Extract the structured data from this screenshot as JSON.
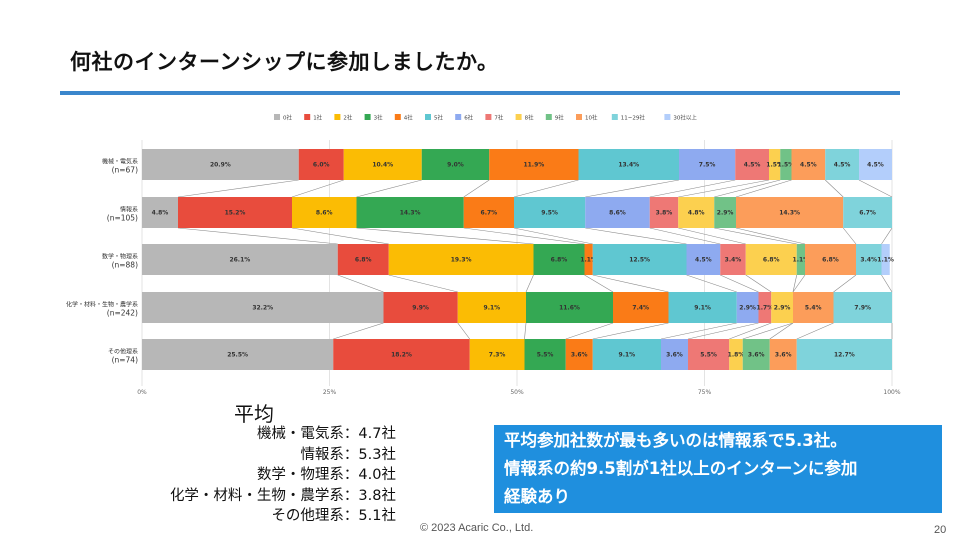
{
  "title": "何社のインターンシップに参加しましたか。",
  "chart_data": {
    "type": "bar",
    "orientation": "horizontal",
    "stacked": "percent",
    "series_names": [
      "0社",
      "1社",
      "2社",
      "3社",
      "4社",
      "5社",
      "6社",
      "7社",
      "8社",
      "9社",
      "10社",
      "11~29社",
      "30社以上"
    ],
    "colors": [
      "#b7b7b7",
      "#e84c3d",
      "#fbbc04",
      "#34a853",
      "#fa7b17",
      "#5fc7d1",
      "#8eaaf0",
      "#ee7875",
      "#fcd04f",
      "#71c287",
      "#fc9d5a",
      "#7fd3db",
      "#b3cefb"
    ],
    "categories": [
      {
        "name": "機械・電気系",
        "n": "(n=67)",
        "values": [
          20.9,
          6.0,
          10.4,
          9.0,
          11.9,
          13.4,
          7.5,
          4.5,
          1.5,
          1.5,
          4.5,
          4.5,
          4.5
        ]
      },
      {
        "name": "情報系",
        "n": "(n=105)",
        "values": [
          4.8,
          15.2,
          8.6,
          14.3,
          6.7,
          9.5,
          8.6,
          3.8,
          4.8,
          2.9,
          14.3,
          6.7,
          0
        ]
      },
      {
        "name": "数学・物理系",
        "n": "(n=88)",
        "values": [
          26.1,
          6.8,
          19.3,
          6.8,
          1.1,
          12.5,
          4.5,
          3.4,
          6.8,
          1.1,
          6.8,
          3.4,
          1.1
        ]
      },
      {
        "name": "化学・材料・生物・農学系",
        "n": "(n=242)",
        "values": [
          32.2,
          9.9,
          9.1,
          11.6,
          7.4,
          9.1,
          2.9,
          1.7,
          2.9,
          0,
          5.4,
          7.9,
          0
        ]
      },
      {
        "name": "その他理系",
        "n": "(n=74)",
        "values": [
          25.5,
          18.2,
          7.3,
          5.5,
          3.6,
          9.1,
          3.6,
          5.5,
          1.8,
          3.6,
          3.6,
          12.7,
          0
        ]
      }
    ],
    "label_suffix": "%",
    "x_ticks": [
      "0%",
      "25%",
      "50%",
      "75%",
      "100%"
    ],
    "xlim": [
      0,
      100
    ]
  },
  "average": {
    "heading": "平均",
    "lines": [
      "機械・電気系：4.7社",
      "情報系：5.3社",
      "数学・物理系：4.0社",
      "化学・材料・生物・農学系：3.8社",
      "その他理系：5.1社"
    ]
  },
  "callout": {
    "line1": "平均参加社数が最も多いのは情報系で5.3社。",
    "line2": "情報系の約9.5割が1社以上のインターンに参加",
    "line3": "経験あり"
  },
  "footer": "© 2023 Acaric Co., Ltd.",
  "page_number": "20"
}
